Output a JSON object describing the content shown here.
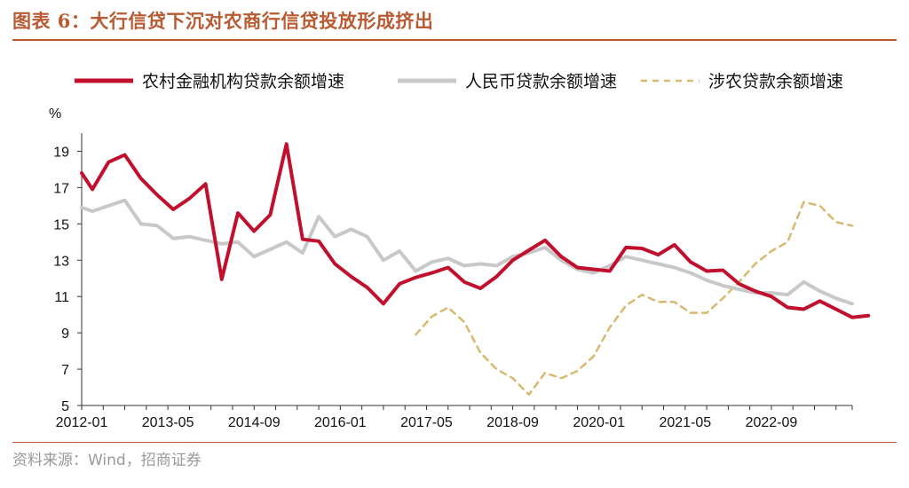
{
  "header": {
    "title": "图表 6：大行信贷下沉对农商行信贷投放形成挤出"
  },
  "footer": {
    "source": "资料来源：Wind，招商证券"
  },
  "chart_data": {
    "type": "line",
    "title": "",
    "ylabel": "%",
    "ylim": [
      5,
      20
    ],
    "yticks": [
      5,
      7,
      9,
      11,
      13,
      15,
      17,
      19
    ],
    "x_start": "2012-01",
    "x_end": "2023-12",
    "xtick_labels": [
      "2012-01",
      "2013-05",
      "2014-09",
      "2016-01",
      "2017-05",
      "2018-09",
      "2020-01",
      "2021-05",
      "2022-09"
    ],
    "legend_position": "top",
    "grid": false,
    "series": [
      {
        "name": "农村金融机构贷款余额增速",
        "color": "#C0102E",
        "style": "solid",
        "points": [
          [
            "2012-01",
            17.8
          ],
          [
            "2012-03",
            16.9
          ],
          [
            "2012-06",
            18.4
          ],
          [
            "2012-09",
            18.8
          ],
          [
            "2012-12",
            17.5
          ],
          [
            "2013-03",
            16.6
          ],
          [
            "2013-06",
            15.8
          ],
          [
            "2013-09",
            16.4
          ],
          [
            "2013-12",
            17.2
          ],
          [
            "2014-03",
            11.95
          ],
          [
            "2014-06",
            15.6
          ],
          [
            "2014-09",
            14.6
          ],
          [
            "2014-12",
            15.5
          ],
          [
            "2015-03",
            19.4
          ],
          [
            "2015-06",
            14.15
          ],
          [
            "2015-09",
            14.05
          ],
          [
            "2015-12",
            12.8
          ],
          [
            "2016-03",
            12.1
          ],
          [
            "2016-06",
            11.5
          ],
          [
            "2016-09",
            10.6
          ],
          [
            "2016-12",
            11.7
          ],
          [
            "2017-03",
            12.05
          ],
          [
            "2017-06",
            12.3
          ],
          [
            "2017-09",
            12.6
          ],
          [
            "2017-12",
            11.8
          ],
          [
            "2018-03",
            11.45
          ],
          [
            "2018-06",
            12.1
          ],
          [
            "2018-09",
            13.0
          ],
          [
            "2018-12",
            13.55
          ],
          [
            "2019-03",
            14.1
          ],
          [
            "2019-06",
            13.2
          ],
          [
            "2019-09",
            12.6
          ],
          [
            "2019-12",
            12.5
          ],
          [
            "2020-03",
            12.4
          ],
          [
            "2020-06",
            13.7
          ],
          [
            "2020-09",
            13.65
          ],
          [
            "2020-12",
            13.3
          ],
          [
            "2021-03",
            13.85
          ],
          [
            "2021-06",
            12.9
          ],
          [
            "2021-09",
            12.4
          ],
          [
            "2021-12",
            12.45
          ],
          [
            "2022-03",
            11.7
          ],
          [
            "2022-06",
            11.3
          ],
          [
            "2022-09",
            11.0
          ],
          [
            "2022-12",
            10.4
          ],
          [
            "2023-03",
            10.3
          ],
          [
            "2023-06",
            10.75
          ],
          [
            "2023-09",
            10.3
          ],
          [
            "2023-12",
            9.85
          ],
          [
            "2024-03",
            9.95
          ]
        ]
      },
      {
        "name": "人民币贷款余额增速",
        "color": "#C8C8C8",
        "style": "solid",
        "points": [
          [
            "2012-01",
            15.9
          ],
          [
            "2012-03",
            15.7
          ],
          [
            "2012-06",
            16.0
          ],
          [
            "2012-09",
            16.3
          ],
          [
            "2012-12",
            15.0
          ],
          [
            "2013-03",
            14.9
          ],
          [
            "2013-06",
            14.2
          ],
          [
            "2013-09",
            14.3
          ],
          [
            "2013-12",
            14.1
          ],
          [
            "2014-03",
            13.9
          ],
          [
            "2014-06",
            14.0
          ],
          [
            "2014-09",
            13.2
          ],
          [
            "2014-12",
            13.6
          ],
          [
            "2015-03",
            14.0
          ],
          [
            "2015-06",
            13.4
          ],
          [
            "2015-09",
            15.4
          ],
          [
            "2015-12",
            14.3
          ],
          [
            "2016-03",
            14.7
          ],
          [
            "2016-06",
            14.3
          ],
          [
            "2016-09",
            13.0
          ],
          [
            "2016-12",
            13.5
          ],
          [
            "2017-03",
            12.4
          ],
          [
            "2017-06",
            12.9
          ],
          [
            "2017-09",
            13.1
          ],
          [
            "2017-12",
            12.7
          ],
          [
            "2018-03",
            12.8
          ],
          [
            "2018-06",
            12.7
          ],
          [
            "2018-09",
            13.2
          ],
          [
            "2018-12",
            13.4
          ],
          [
            "2019-03",
            13.7
          ],
          [
            "2019-06",
            13.0
          ],
          [
            "2019-09",
            12.5
          ],
          [
            "2019-12",
            12.3
          ],
          [
            "2020-03",
            12.7
          ],
          [
            "2020-06",
            13.2
          ],
          [
            "2020-09",
            13.0
          ],
          [
            "2020-12",
            12.8
          ],
          [
            "2021-03",
            12.6
          ],
          [
            "2021-06",
            12.3
          ],
          [
            "2021-09",
            11.9
          ],
          [
            "2021-12",
            11.6
          ],
          [
            "2022-03",
            11.4
          ],
          [
            "2022-06",
            11.2
          ],
          [
            "2022-09",
            11.2
          ],
          [
            "2022-12",
            11.1
          ],
          [
            "2023-03",
            11.8
          ],
          [
            "2023-06",
            11.3
          ],
          [
            "2023-09",
            10.9
          ],
          [
            "2023-12",
            10.6
          ]
        ]
      },
      {
        "name": "涉农贷款余额增速",
        "color": "#D9B870",
        "style": "dashed",
        "points": [
          [
            "2017-03",
            8.9
          ],
          [
            "2017-06",
            9.9
          ],
          [
            "2017-09",
            10.4
          ],
          [
            "2017-12",
            9.6
          ],
          [
            "2018-03",
            7.9
          ],
          [
            "2018-06",
            7.0
          ],
          [
            "2018-09",
            6.5
          ],
          [
            "2018-12",
            5.6
          ],
          [
            "2019-03",
            6.8
          ],
          [
            "2019-06",
            6.5
          ],
          [
            "2019-09",
            6.9
          ],
          [
            "2019-12",
            7.7
          ],
          [
            "2020-03",
            9.3
          ],
          [
            "2020-06",
            10.5
          ],
          [
            "2020-09",
            11.1
          ],
          [
            "2020-12",
            10.7
          ],
          [
            "2021-03",
            10.7
          ],
          [
            "2021-06",
            10.1
          ],
          [
            "2021-09",
            10.1
          ],
          [
            "2021-12",
            10.9
          ],
          [
            "2022-03",
            11.8
          ],
          [
            "2022-06",
            12.8
          ],
          [
            "2022-09",
            13.5
          ],
          [
            "2022-12",
            14.0
          ],
          [
            "2023-03",
            16.2
          ],
          [
            "2023-06",
            16.0
          ],
          [
            "2023-09",
            15.1
          ],
          [
            "2023-12",
            14.9
          ]
        ]
      }
    ]
  }
}
